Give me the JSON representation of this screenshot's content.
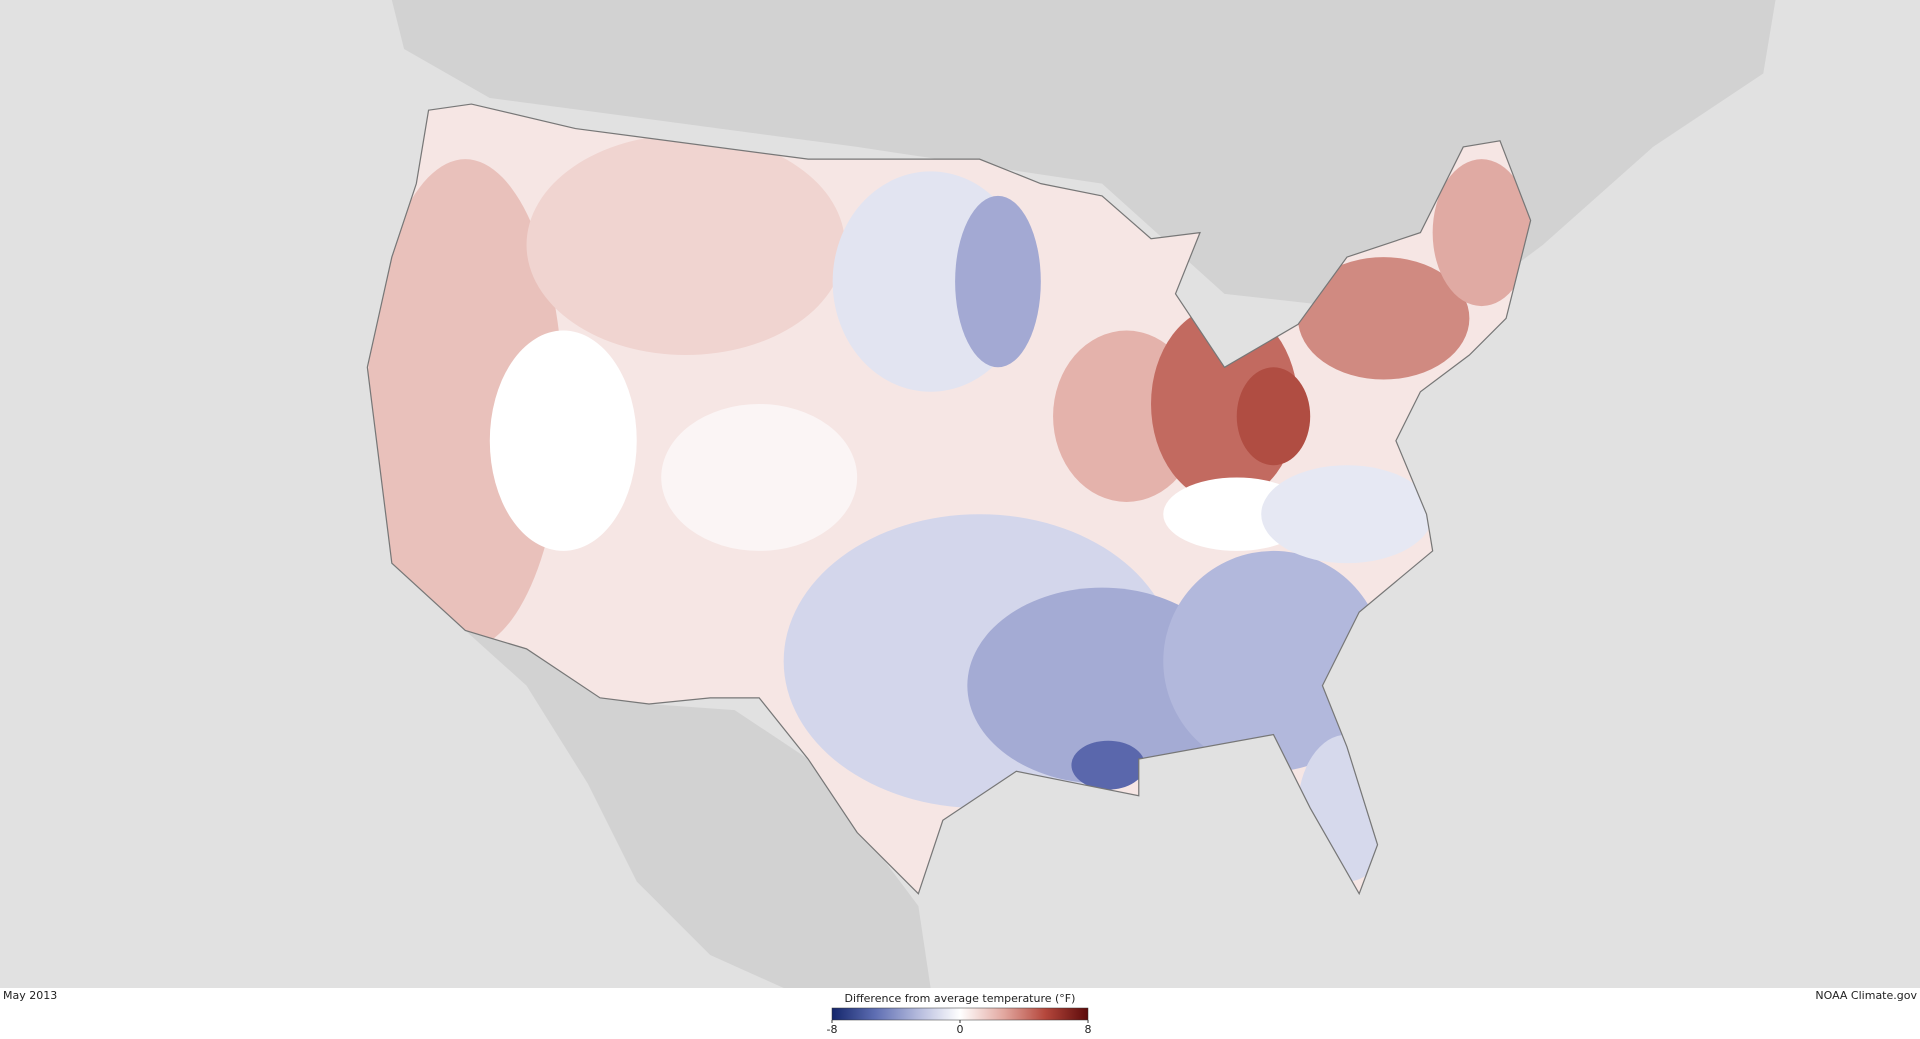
{
  "map": {
    "date": "May 2013",
    "credit": "NOAA Climate.gov",
    "legend": {
      "title": "Difference from average temperature (°F)",
      "range": [
        -8,
        8
      ],
      "ticks": [
        -8,
        0,
        8
      ],
      "colors": [
        "#14266b",
        "#5d6db2",
        "#b3b9dc",
        "#ffffff",
        "#e3aaa2",
        "#b5473c",
        "#5c0a0a"
      ]
    }
  }
}
